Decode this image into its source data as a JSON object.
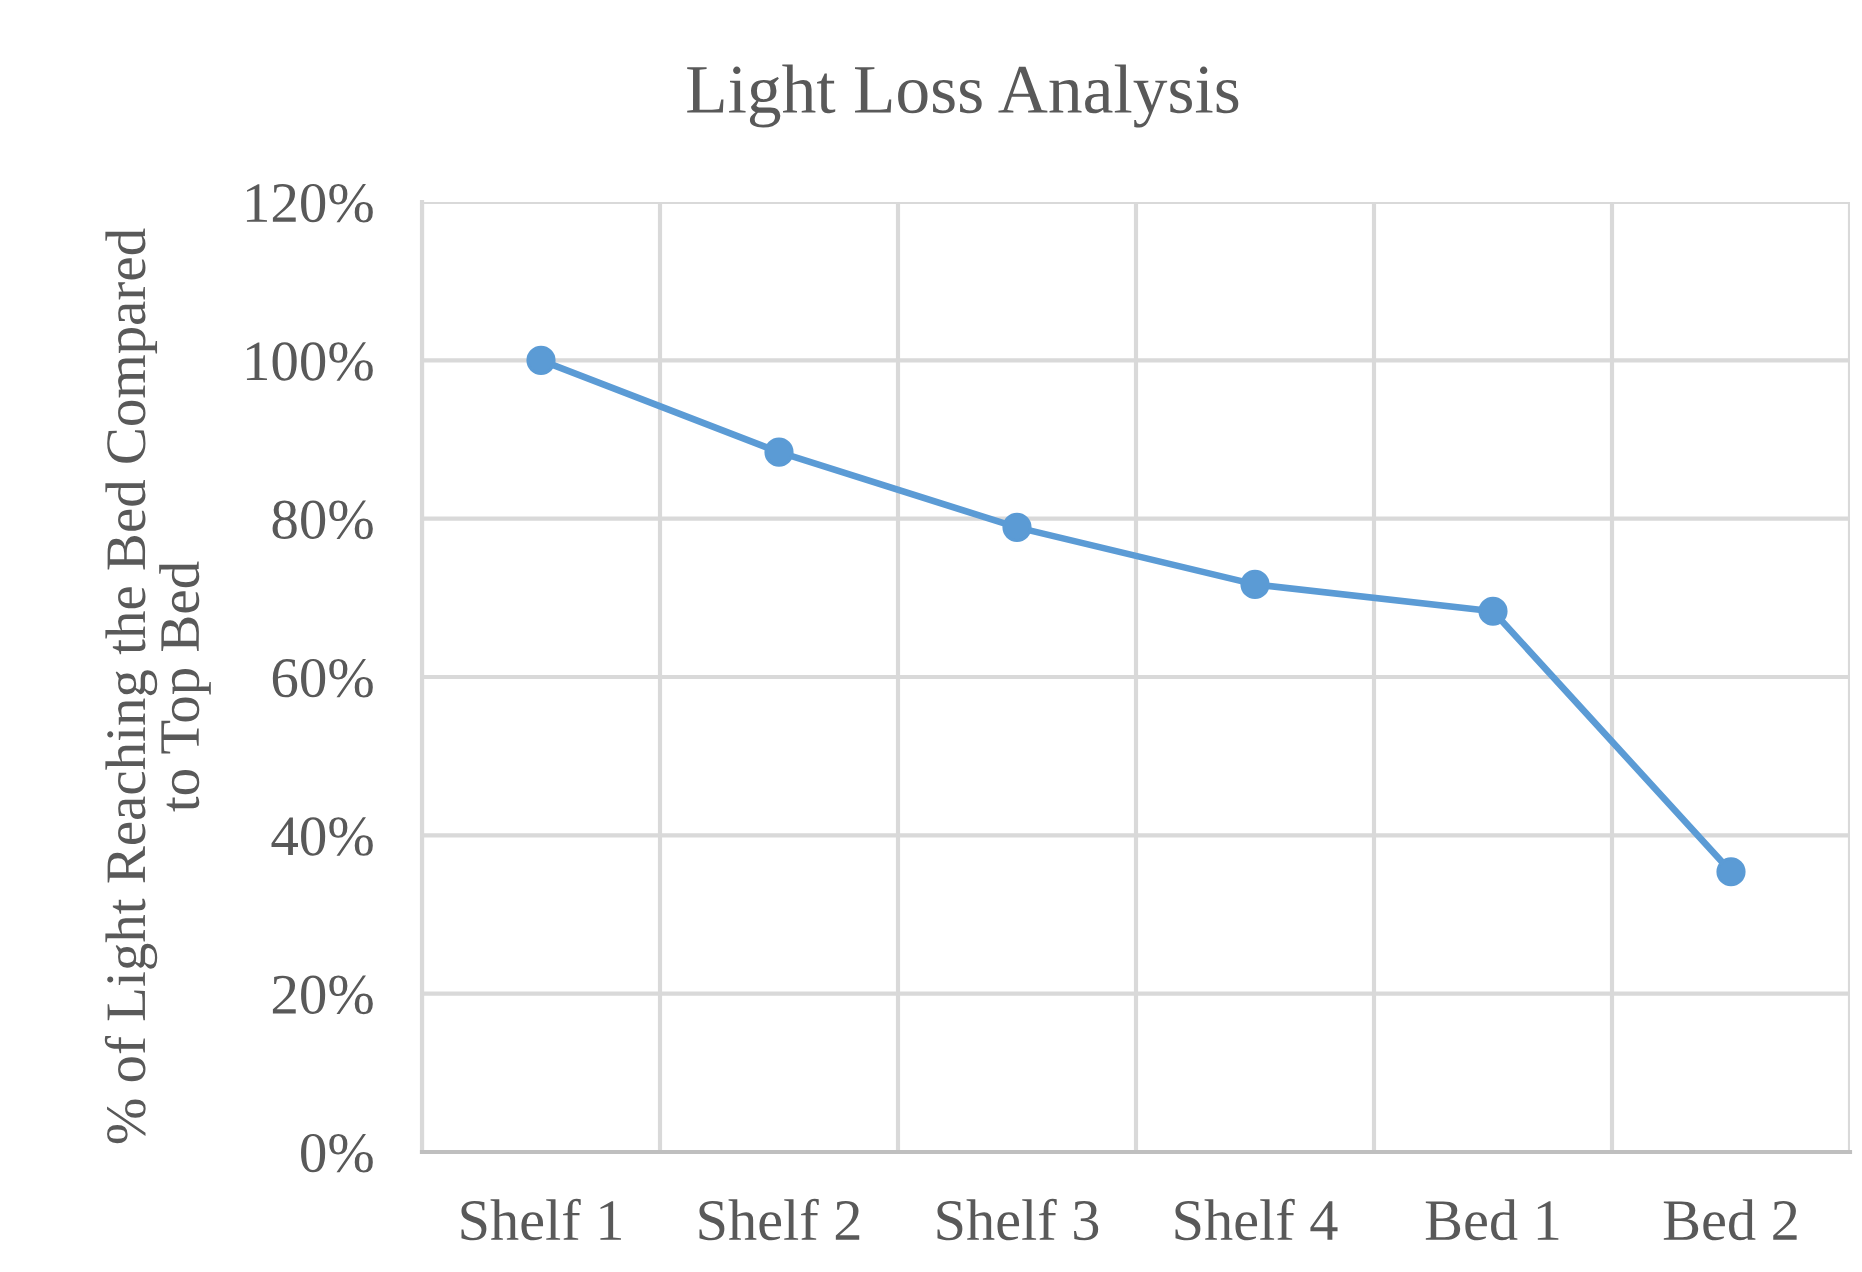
{
  "chart_data": {
    "type": "line",
    "title": "Light Loss Analysis",
    "ylabel": "% of Light Reaching the Bed Compared\nto Top Bed",
    "categories": [
      "Shelf 1",
      "Shelf 2",
      "Shelf 3",
      "Shelf 4",
      "Bed 1",
      "Bed 2"
    ],
    "series": [
      {
        "color": "#5b9bd5",
        "values": [
          100,
          88.4,
          78.9,
          71.7,
          68.3,
          35.4
        ]
      }
    ],
    "ylim": [
      0,
      120
    ],
    "yticks": [
      {
        "value": 0,
        "label": "0%"
      },
      {
        "value": 20,
        "label": "20%"
      },
      {
        "value": 40,
        "label": "40%"
      },
      {
        "value": 60,
        "label": "60%"
      },
      {
        "value": 80,
        "label": "80%"
      },
      {
        "value": 100,
        "label": "100%"
      },
      {
        "value": 120,
        "label": "120%"
      }
    ],
    "grid": true,
    "marker": "circle",
    "line_style": "solid"
  }
}
